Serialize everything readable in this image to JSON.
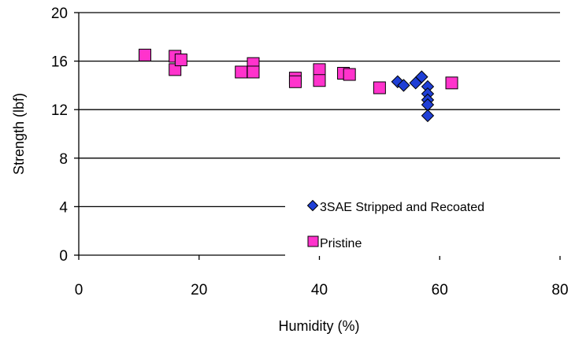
{
  "chart_data": {
    "type": "scatter",
    "xlabel": "Humidity (%)",
    "ylabel": "Strength (lbf)",
    "xlim": [
      0,
      80
    ],
    "ylim": [
      0,
      20
    ],
    "x_ticks": [
      0,
      20,
      40,
      60,
      80
    ],
    "y_ticks": [
      0,
      4,
      8,
      12,
      16,
      20
    ],
    "grid": "horizontal",
    "legend_position": "lower-right",
    "series": [
      {
        "name": "3SAE Stripped and Recoated",
        "marker": "diamond",
        "color": "#1f3fd6",
        "points": [
          {
            "x": 53,
            "y": 14.3
          },
          {
            "x": 54,
            "y": 14.0
          },
          {
            "x": 56,
            "y": 14.2
          },
          {
            "x": 57,
            "y": 14.7
          },
          {
            "x": 58,
            "y": 13.9
          },
          {
            "x": 58,
            "y": 13.3
          },
          {
            "x": 58,
            "y": 12.8
          },
          {
            "x": 58,
            "y": 12.4
          },
          {
            "x": 58,
            "y": 11.5
          }
        ]
      },
      {
        "name": "Pristine",
        "marker": "square",
        "color": "#ff33cc",
        "points": [
          {
            "x": 11,
            "y": 16.5
          },
          {
            "x": 16,
            "y": 16.4
          },
          {
            "x": 16,
            "y": 15.3
          },
          {
            "x": 17,
            "y": 16.1
          },
          {
            "x": 27,
            "y": 15.1
          },
          {
            "x": 29,
            "y": 15.8
          },
          {
            "x": 29,
            "y": 15.1
          },
          {
            "x": 36,
            "y": 14.6
          },
          {
            "x": 36,
            "y": 14.3
          },
          {
            "x": 40,
            "y": 15.3
          },
          {
            "x": 40,
            "y": 14.4
          },
          {
            "x": 44,
            "y": 15.0
          },
          {
            "x": 45,
            "y": 14.9
          },
          {
            "x": 50,
            "y": 13.8
          },
          {
            "x": 62,
            "y": 14.2
          }
        ]
      }
    ]
  }
}
